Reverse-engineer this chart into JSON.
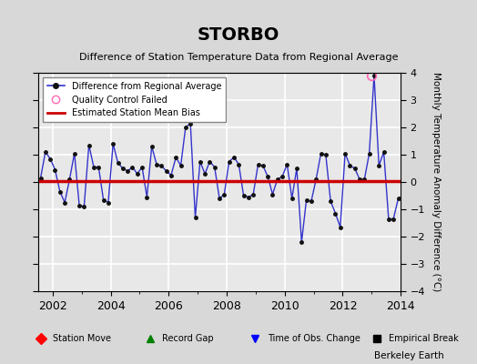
{
  "title": "STORBO",
  "subtitle": "Difference of Station Temperature Data from Regional Average",
  "ylabel_right": "Monthly Temperature Anomaly Difference (°C)",
  "credit": "Berkeley Earth",
  "xlim": [
    2001.5,
    2014.0
  ],
  "ylim": [
    -4,
    4
  ],
  "bias_value": 0.05,
  "background_color": "#e8e8e8",
  "grid_color": "white",
  "line_color": "#3333cc",
  "marker_color": "#111111",
  "bias_color": "#cc0000",
  "qc_fail_x": 2013.0,
  "qc_fail_y": 3.9,
  "data_x": [
    2001.583,
    2001.75,
    2001.917,
    2002.083,
    2002.25,
    2002.417,
    2002.583,
    2002.75,
    2002.917,
    2003.083,
    2003.25,
    2003.417,
    2003.583,
    2003.75,
    2003.917,
    2004.083,
    2004.25,
    2004.417,
    2004.583,
    2004.75,
    2004.917,
    2005.083,
    2005.25,
    2005.417,
    2005.583,
    2005.75,
    2005.917,
    2006.083,
    2006.25,
    2006.417,
    2006.583,
    2006.75,
    2006.917,
    2007.083,
    2007.25,
    2007.417,
    2007.583,
    2007.75,
    2007.917,
    2008.083,
    2008.25,
    2008.417,
    2008.583,
    2008.75,
    2008.917,
    2009.083,
    2009.25,
    2009.417,
    2009.583,
    2009.75,
    2009.917,
    2010.083,
    2010.25,
    2010.417,
    2010.583,
    2010.75,
    2010.917,
    2011.083,
    2011.25,
    2011.417,
    2011.583,
    2011.75,
    2011.917,
    2012.083,
    2012.25,
    2012.417,
    2012.583,
    2012.75,
    2012.917,
    2013.083,
    2013.25,
    2013.417,
    2013.583,
    2013.75,
    2013.917
  ],
  "data_y": [
    0.15,
    1.1,
    0.85,
    0.45,
    -0.35,
    -0.75,
    0.1,
    1.05,
    -0.85,
    -0.9,
    1.35,
    0.55,
    0.55,
    -0.65,
    -0.75,
    1.4,
    0.7,
    0.5,
    0.4,
    0.55,
    0.3,
    0.55,
    -0.55,
    1.3,
    0.65,
    0.6,
    0.4,
    0.25,
    0.9,
    0.6,
    2.0,
    2.15,
    -1.3,
    0.75,
    0.3,
    0.75,
    0.55,
    -0.6,
    -0.45,
    0.75,
    0.9,
    0.65,
    -0.5,
    -0.55,
    -0.45,
    0.65,
    0.6,
    0.2,
    -0.45,
    0.1,
    0.2,
    0.65,
    -0.6,
    0.5,
    -2.2,
    -0.65,
    -0.7,
    0.1,
    1.05,
    1.0,
    -0.7,
    -1.15,
    -1.65,
    1.05,
    0.6,
    0.5,
    0.1,
    0.1,
    1.05,
    3.9,
    0.6,
    1.1,
    -1.35,
    -1.35,
    -0.6
  ],
  "xticks": [
    2002,
    2004,
    2006,
    2008,
    2010,
    2012,
    2014
  ],
  "yticks": [
    -4,
    -3,
    -2,
    -1,
    0,
    1,
    2,
    3,
    4
  ]
}
